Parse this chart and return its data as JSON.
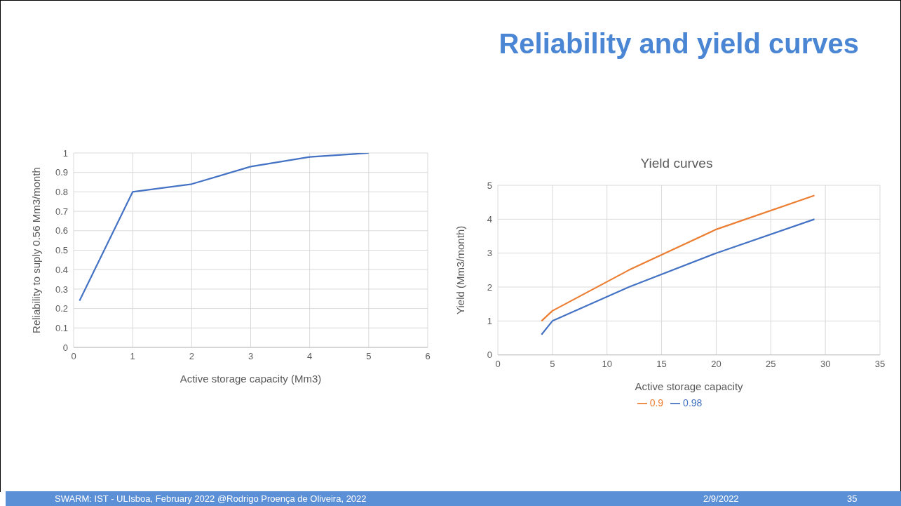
{
  "chart_data": [
    {
      "type": "line",
      "xlabel": "Active storage capacity (Mm3)",
      "ylabel": "Reliability to suply 0.56 Mm3/month",
      "x": [
        0.1,
        1,
        2,
        3,
        4,
        5
      ],
      "series": [
        {
          "color": "#4472c4",
          "values": [
            0.24,
            0.8,
            0.84,
            0.93,
            0.98,
            1
          ]
        }
      ],
      "xlim": [
        0,
        6
      ],
      "xticks": [
        0,
        1,
        2,
        3,
        4,
        5,
        6
      ],
      "ylim": [
        0,
        1
      ],
      "yticks": [
        0,
        0.1,
        0.2,
        0.3,
        0.4,
        0.5,
        0.6,
        0.7,
        0.8,
        0.9,
        1
      ],
      "grid": true,
      "legend": false,
      "marker": "none",
      "line_style": "solid",
      "annotations": [
        "Reliability and yield curves",
        "SWARM: IST - ULIsboa, February 2022  @Rodrigo Proença de Oliveira, 2022",
        "2/9/2022",
        "35"
      ]
    },
    {
      "type": "line",
      "title": "Yield curves",
      "xlabel": "Active storage capacity",
      "ylabel": "Yield (Mm3/month)",
      "series": [
        {
          "name": "0.98",
          "color": "#4472c4",
          "x": [
            4,
            5,
            12,
            20,
            29
          ],
          "values": [
            0.6,
            1,
            2,
            3,
            4
          ]
        },
        {
          "name": "0.9",
          "color": "#ed7d31",
          "x": [
            4,
            5,
            12,
            20,
            29
          ],
          "values": [
            1,
            1.3,
            2.5,
            3.7,
            4.7
          ]
        }
      ],
      "xlim": [
        0,
        35
      ],
      "xticks": [
        0,
        5,
        10,
        15,
        20,
        25,
        30,
        35
      ],
      "ylim": [
        0,
        5
      ],
      "yticks": [
        0,
        1,
        2,
        3,
        4,
        5
      ],
      "grid": true,
      "legend": "bottom",
      "marker": "none",
      "line_style": "solid"
    }
  ]
}
